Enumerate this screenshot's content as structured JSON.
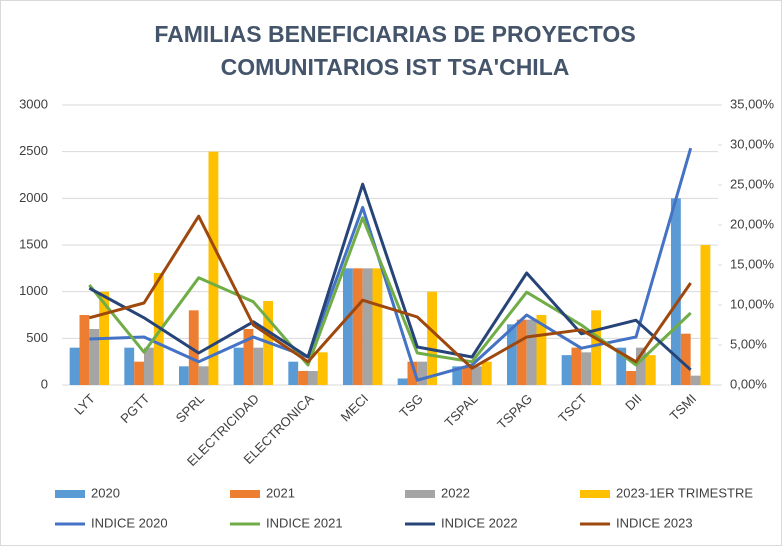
{
  "chart_data": {
    "type": "bar",
    "title": [
      "FAMILIAS BENEFICIARIAS DE PROYECTOS",
      "COMUNITARIOS IST TSA'CHILA"
    ],
    "categories": [
      "LYT",
      "PGTT",
      "SPRL",
      "ELECTRICIDAD",
      "ELECTRONICA",
      "MECI",
      "TSG",
      "TSPAL",
      "TSPAG",
      "TSCT",
      "DII",
      "TSMI"
    ],
    "series": [
      {
        "name": "2020",
        "color": "#5b9bd5",
        "values": [
          400,
          400,
          200,
          400,
          250,
          1250,
          70,
          200,
          650,
          320,
          400,
          2000
        ]
      },
      {
        "name": "2021",
        "color": "#ed7d31",
        "values": [
          750,
          250,
          800,
          600,
          150,
          1250,
          250,
          200,
          700,
          400,
          150,
          550
        ]
      },
      {
        "name": "2022",
        "color": "#a5a5a5",
        "values": [
          600,
          400,
          200,
          400,
          150,
          1250,
          250,
          200,
          700,
          350,
          400,
          100
        ]
      },
      {
        "name": "2023-1ER TRIMESTRE",
        "color": "#ffc000",
        "values": [
          1000,
          1200,
          2500,
          900,
          350,
          1250,
          1000,
          250,
          750,
          800,
          320,
          1500
        ]
      },
      {
        "name": "INDICE 2020",
        "color": "#4472c4",
        "type": "line",
        "axis": "y2",
        "values": [
          5.75,
          6.0,
          2.9,
          6.0,
          3.5,
          22.2,
          0.6,
          2.5,
          8.75,
          4.6,
          6.0,
          29.6
        ]
      },
      {
        "name": "INDICE 2021",
        "color": "#70ad47",
        "type": "line",
        "axis": "y2",
        "values": [
          12.5,
          4.1,
          13.4,
          10.4,
          2.5,
          20.9,
          4.0,
          2.9,
          11.6,
          7.5,
          2.5,
          9.0
        ]
      },
      {
        "name": "INDICE 2022",
        "color": "#264478",
        "type": "line",
        "axis": "y2",
        "values": [
          12.1,
          8.4,
          4.0,
          7.9,
          3.5,
          25.1,
          4.75,
          3.5,
          14.0,
          6.4,
          8.1,
          1.9
        ]
      },
      {
        "name": "INDICE 2023",
        "color": "#9e480e",
        "type": "line",
        "axis": "y2",
        "values": [
          8.4,
          10.25,
          21.1,
          7.5,
          2.9,
          10.6,
          8.5,
          2.1,
          6.0,
          6.9,
          2.9,
          12.75
        ]
      }
    ],
    "ylim": [
      0,
      3000
    ],
    "yticks": [
      0,
      500,
      1000,
      1500,
      2000,
      2500,
      3000
    ],
    "y2lim": [
      0,
      35
    ],
    "y2ticks": [
      {
        "value": 0,
        "label": "0,00%"
      },
      {
        "value": 5,
        "label": "5,00%"
      },
      {
        "value": 10,
        "label": "10,00%"
      },
      {
        "value": 15,
        "label": "15,00%"
      },
      {
        "value": 20,
        "label": "20,00%"
      },
      {
        "value": 25,
        "label": "25,00%"
      },
      {
        "value": 30,
        "label": "30,00%"
      },
      {
        "value": 35,
        "label": "35,00%"
      }
    ],
    "grid": true,
    "legend": "bottom"
  }
}
